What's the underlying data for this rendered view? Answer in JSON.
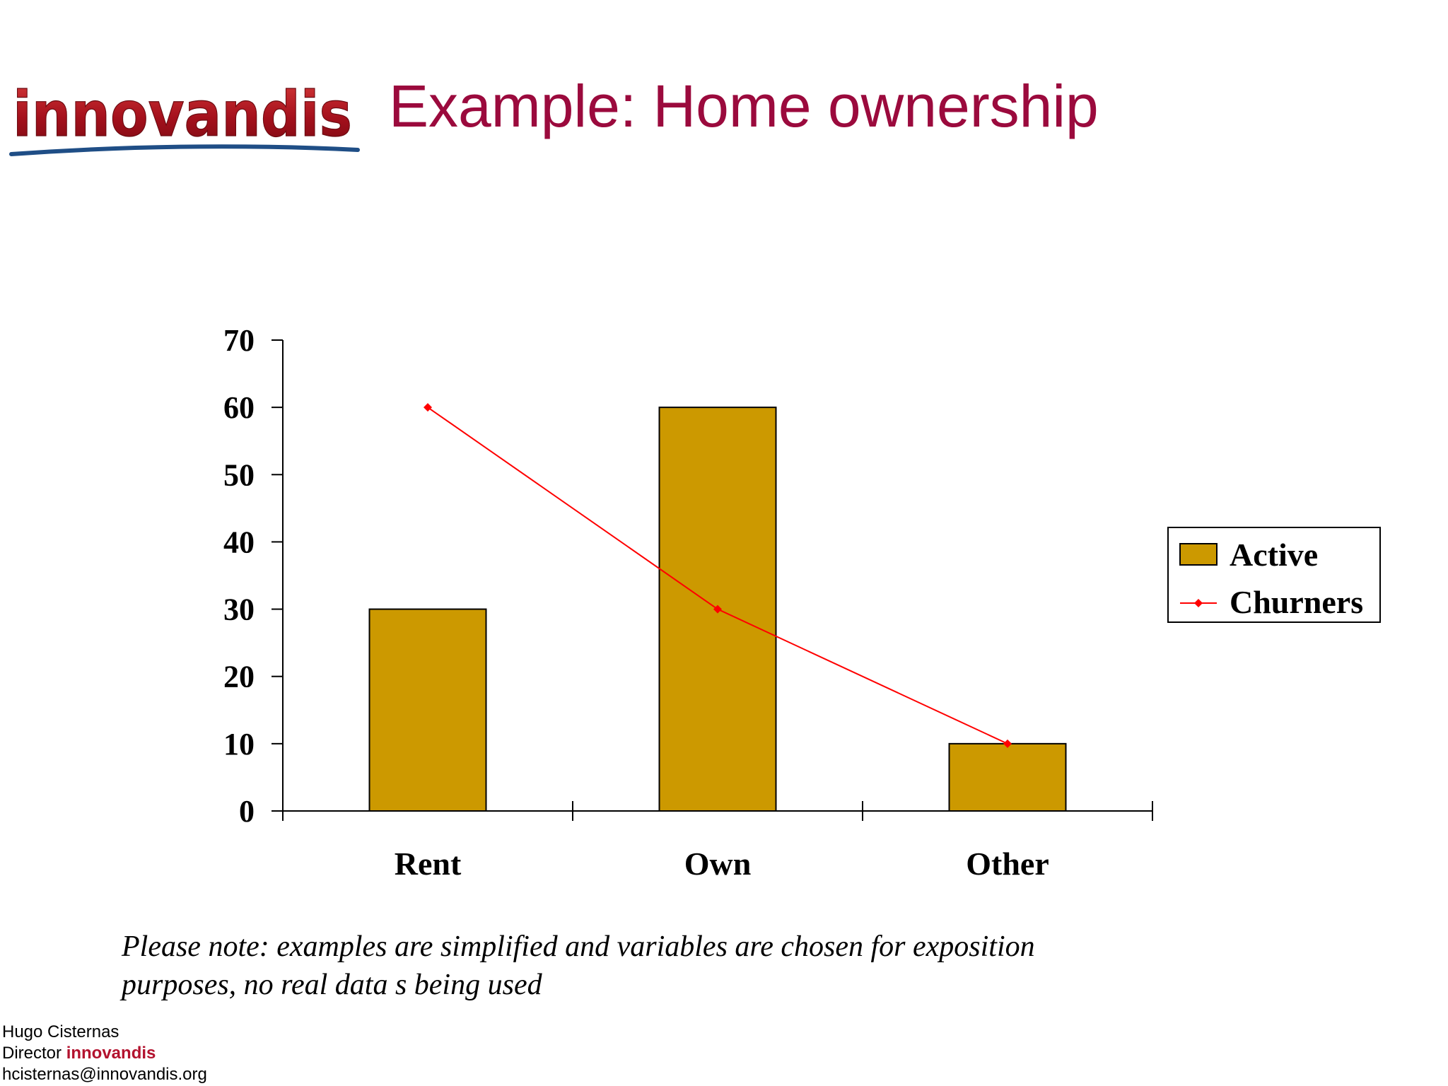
{
  "logo": {
    "text": "innovandis"
  },
  "slide": {
    "title": "Example: Home ownership"
  },
  "chart_data": {
    "type": "bar",
    "categories": [
      "Rent",
      "Own",
      "Other"
    ],
    "series": [
      {
        "name": "Active",
        "kind": "bar",
        "values": [
          30,
          60,
          10
        ],
        "color": "#cc9900"
      },
      {
        "name": "Churners",
        "kind": "line",
        "values": [
          60,
          30,
          10
        ],
        "color": "#ff0000"
      }
    ],
    "title": "",
    "xlabel": "",
    "ylabel": "",
    "ylim": [
      0,
      70
    ],
    "yticks": [
      0,
      10,
      20,
      30,
      40,
      50,
      60,
      70
    ],
    "grid": false,
    "legend_position": "right"
  },
  "note": {
    "line1": "Please note: examples are simplified and variables are chosen for exposition",
    "line2": "purposes, no real data s being used"
  },
  "footer": {
    "name": "Hugo Cisternas",
    "role": "Director",
    "brand": "innovandis",
    "email": "hcisternas@innovandis.org"
  }
}
